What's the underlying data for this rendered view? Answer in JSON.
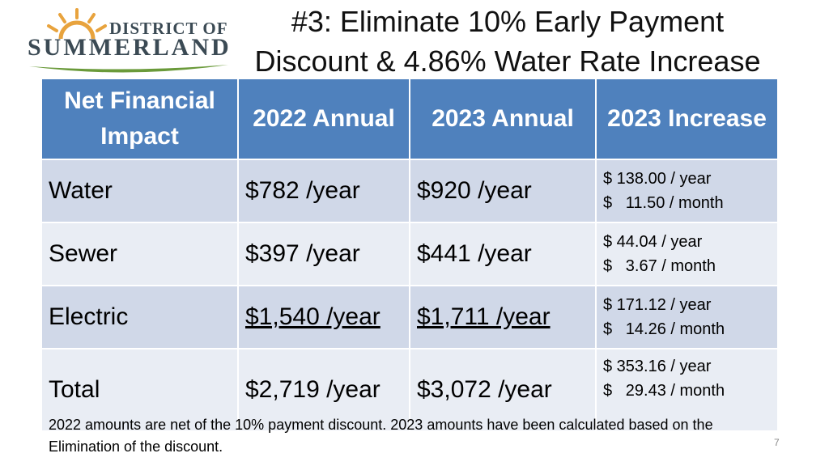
{
  "logo": {
    "line1": "DISTRICT OF",
    "line2": "SUMMERLAND"
  },
  "title": "#3: Eliminate 10% Early Payment Discount & 4.86% Water Rate Increase",
  "table": {
    "headers": [
      "Net Financial Impact",
      "2022 Annual",
      "2023 Annual",
      "2023 Increase"
    ],
    "rows": [
      {
        "label": "Water",
        "y2022": "$782 /year",
        "y2023": "$920 /year",
        "inc_year": "$ 138.00 / year",
        "inc_month": "$   11.50 / month"
      },
      {
        "label": "Sewer",
        "y2022": "$397 /year",
        "y2023": "$441 /year",
        "inc_year": "$ 44.04 / year",
        "inc_month": "$   3.67 / month"
      },
      {
        "label": "Electric",
        "y2022": "$1,540 /year",
        "y2023": "$1,711 /year",
        "inc_year": "$ 171.12 / year",
        "inc_month": "$   14.26 / month"
      },
      {
        "label": "Total",
        "y2022": "$2,719 /year",
        "y2023": "$3,072 /year",
        "inc_year": "$ 353.16 / year",
        "inc_month": "$   29.43 / month"
      }
    ]
  },
  "footnote": "2022 amounts are net of the 10% payment discount.  2023 amounts have been calculated based on the Elimination of the discount.",
  "page_number": "7",
  "colors": {
    "header_bg": "#4f81bd",
    "row_dark": "#d0d8e8",
    "row_light": "#e9edf4",
    "logo_text": "#3b4a54",
    "logo_sun": "#e8a33d",
    "logo_leaf": "#6a9a3a"
  }
}
